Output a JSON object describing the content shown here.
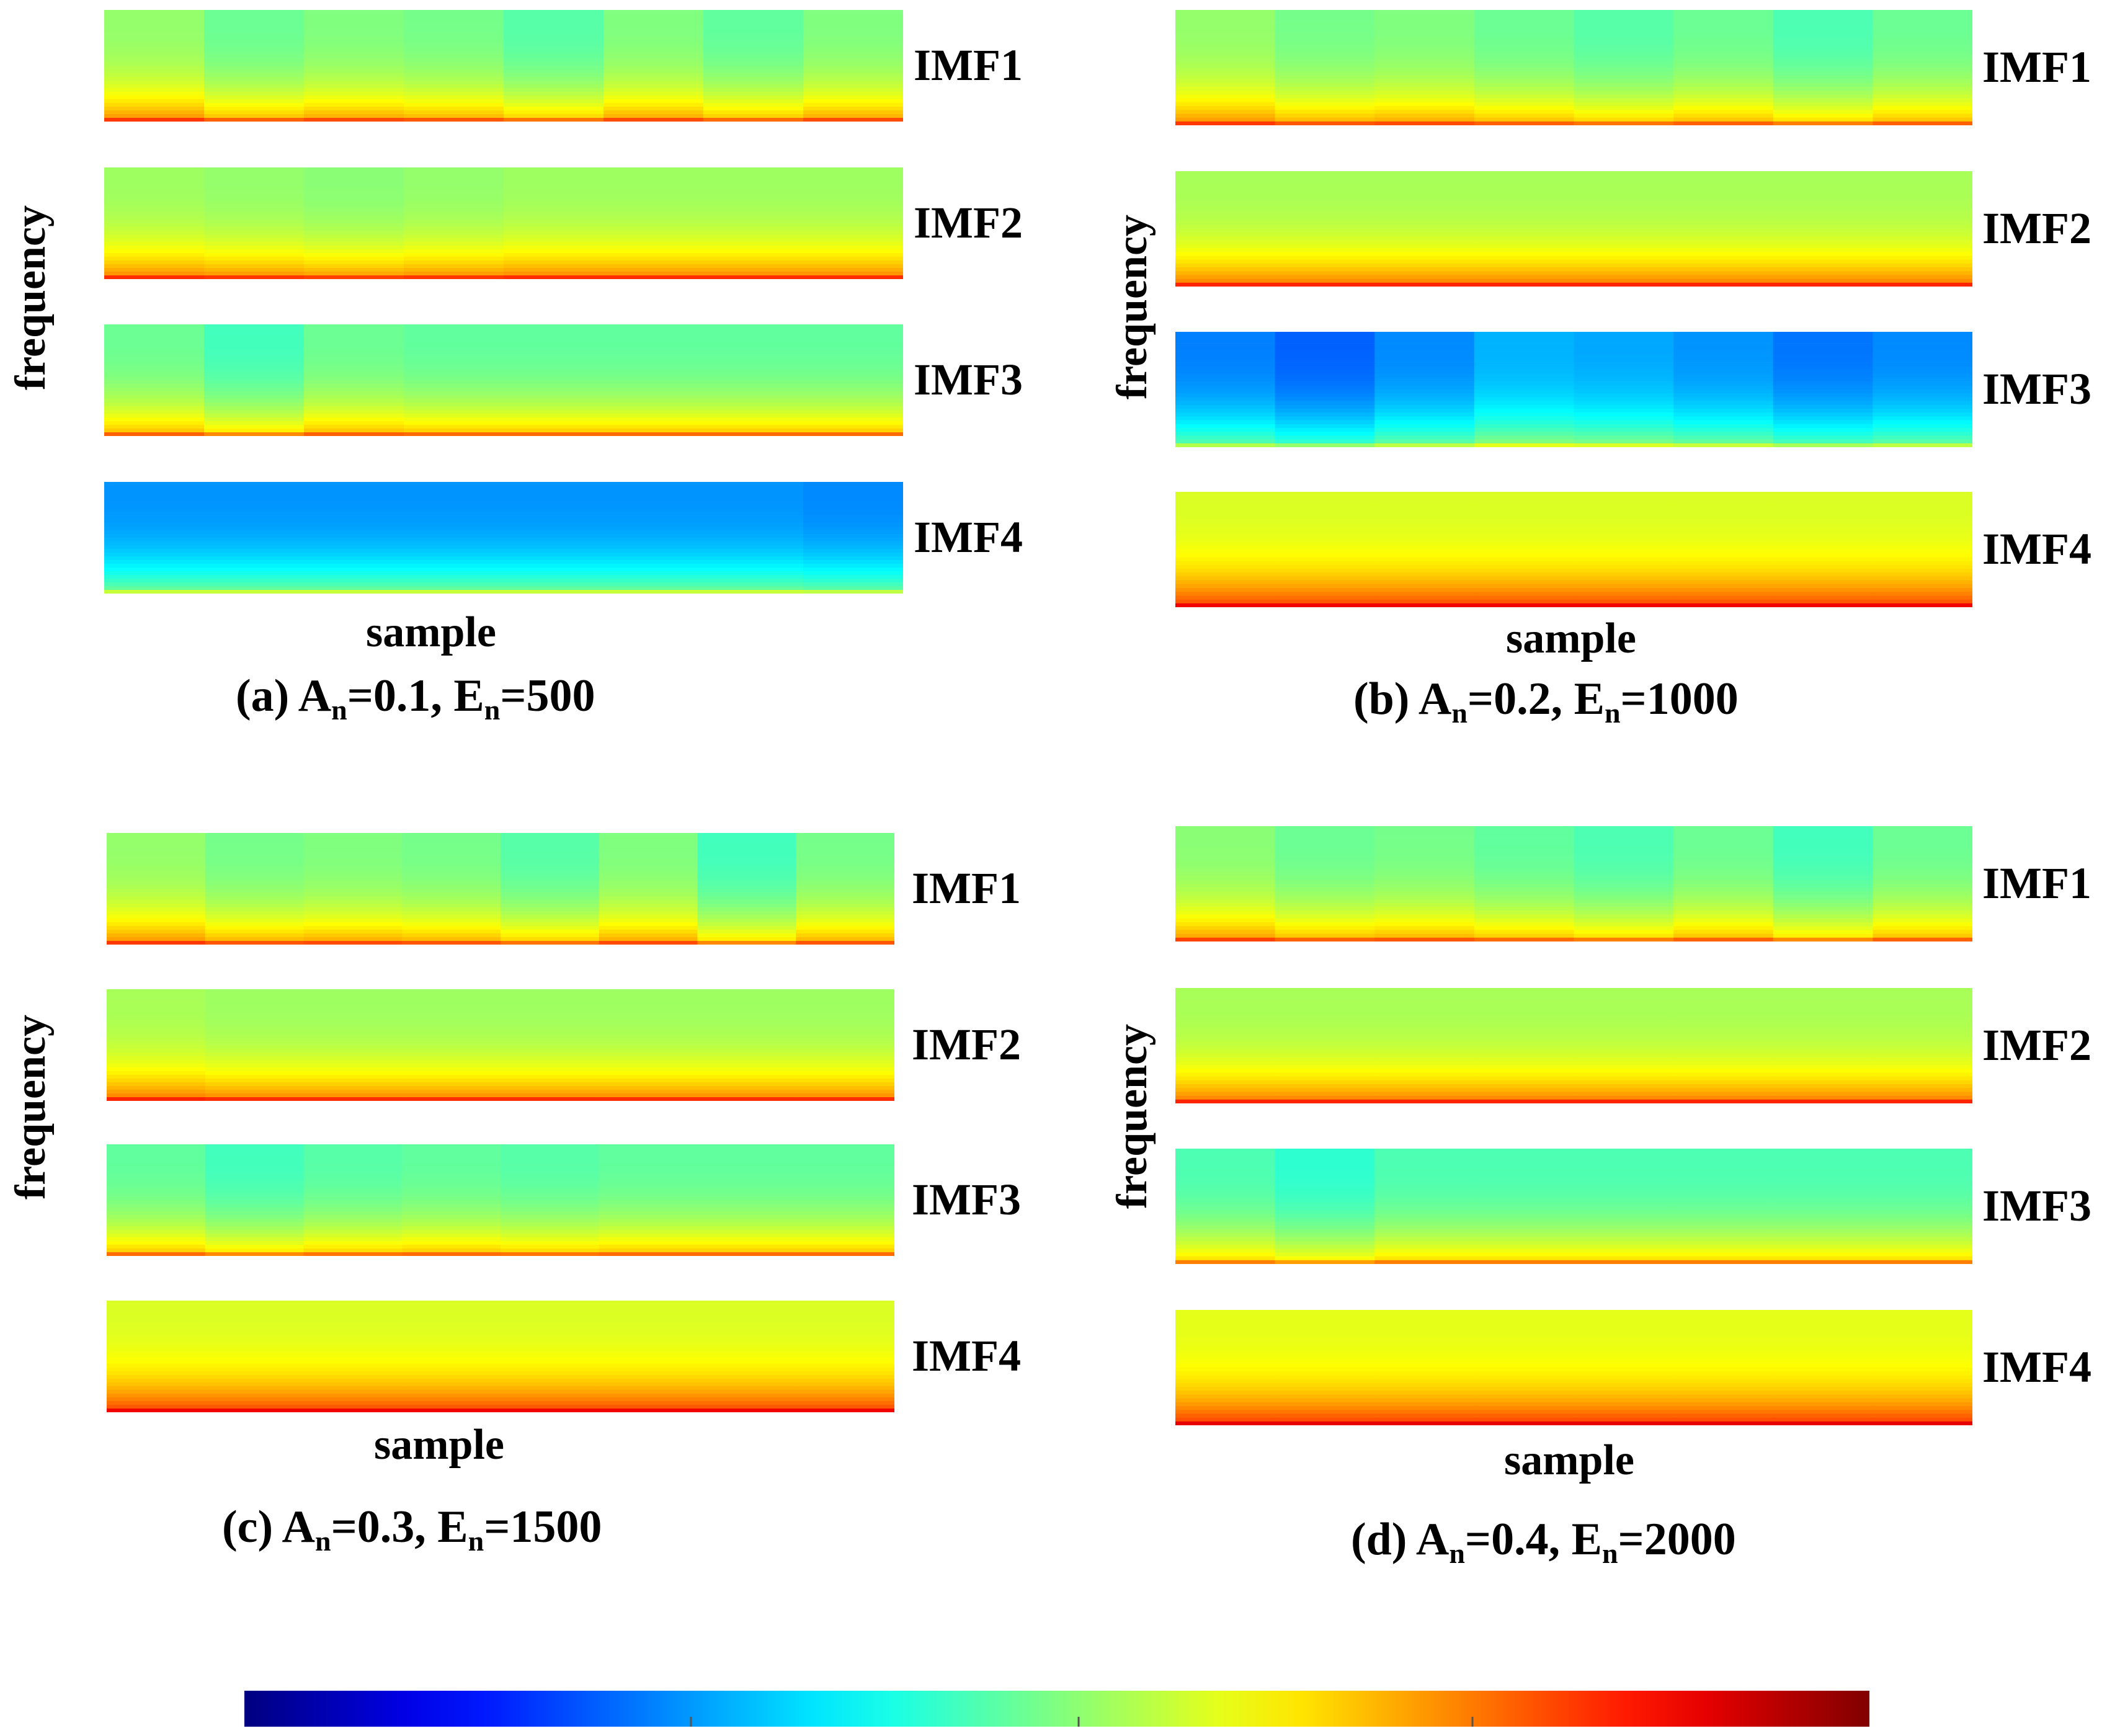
{
  "chart_data": {
    "type": "heatmap",
    "colormap": "jet",
    "colormap_stops": [
      "#00008f",
      "#0000ff",
      "#0080ff",
      "#00ffff",
      "#80ff80",
      "#ffff00",
      "#ff8000",
      "#ff0000",
      "#800000"
    ],
    "column_count": 8,
    "panels": [
      {
        "id": "a",
        "caption_prefix": "(a) A",
        "caption_sub_a": "n",
        "caption_mid": "=0.1, E",
        "caption_sub_e": "n",
        "caption_suffix": "=500",
        "xlabel": "sample",
        "ylabel": "frequency",
        "imfs": [
          {
            "label": "IMF1",
            "base": [
              0.52,
              0.48,
              0.5,
              0.49,
              0.46,
              0.5,
              0.47,
              0.5
            ]
          },
          {
            "label": "IMF2",
            "base": [
              0.53,
              0.52,
              0.51,
              0.52,
              0.53,
              0.53,
              0.53,
              0.53
            ]
          },
          {
            "label": "IMF3",
            "base": [
              0.48,
              0.44,
              0.48,
              0.47,
              0.47,
              0.47,
              0.47,
              0.47
            ]
          },
          {
            "label": "IMF4",
            "base": [
              0.27,
              0.27,
              0.27,
              0.27,
              0.27,
              0.27,
              0.27,
              0.26
            ]
          }
        ]
      },
      {
        "id": "b",
        "caption_prefix": "(b) A",
        "caption_sub_a": "n",
        "caption_mid": "=0.2, E",
        "caption_sub_e": "n",
        "caption_suffix": "=1000",
        "xlabel": "sample",
        "ylabel": "frequency",
        "imfs": [
          {
            "label": "IMF1",
            "base": [
              0.52,
              0.49,
              0.5,
              0.48,
              0.46,
              0.48,
              0.45,
              0.48
            ]
          },
          {
            "label": "IMF2",
            "base": [
              0.54,
              0.54,
              0.54,
              0.54,
              0.54,
              0.54,
              0.54,
              0.54
            ]
          },
          {
            "label": "IMF3",
            "base": [
              0.25,
              0.22,
              0.26,
              0.3,
              0.29,
              0.27,
              0.24,
              0.26
            ]
          },
          {
            "label": "IMF4",
            "base": [
              0.59,
              0.59,
              0.59,
              0.59,
              0.59,
              0.59,
              0.59,
              0.59
            ]
          }
        ]
      },
      {
        "id": "c",
        "caption_prefix": "(c) A",
        "caption_sub_a": "n",
        "caption_mid": "=0.3, E",
        "caption_sub_e": "n",
        "caption_suffix": "=1500",
        "xlabel": "sample",
        "ylabel": "frequency",
        "imfs": [
          {
            "label": "IMF1",
            "base": [
              0.52,
              0.49,
              0.5,
              0.49,
              0.46,
              0.5,
              0.44,
              0.49
            ]
          },
          {
            "label": "IMF2",
            "base": [
              0.54,
              0.53,
              0.53,
              0.53,
              0.53,
              0.53,
              0.53,
              0.53
            ]
          },
          {
            "label": "IMF3",
            "base": [
              0.47,
              0.44,
              0.46,
              0.47,
              0.46,
              0.47,
              0.47,
              0.47
            ]
          },
          {
            "label": "IMF4",
            "base": [
              0.59,
              0.59,
              0.59,
              0.59,
              0.59,
              0.59,
              0.59,
              0.59
            ]
          }
        ]
      },
      {
        "id": "d",
        "caption_prefix": "(d) A",
        "caption_sub_a": "n",
        "caption_mid": "=0.4, E",
        "caption_sub_e": "n",
        "caption_suffix": "=2000",
        "xlabel": "sample",
        "ylabel": "frequency",
        "imfs": [
          {
            "label": "IMF1",
            "base": [
              0.51,
              0.48,
              0.49,
              0.47,
              0.45,
              0.48,
              0.44,
              0.48
            ]
          },
          {
            "label": "IMF2",
            "base": [
              0.54,
              0.54,
              0.54,
              0.54,
              0.54,
              0.54,
              0.54,
              0.54
            ]
          },
          {
            "label": "IMF3",
            "base": [
              0.45,
              0.42,
              0.45,
              0.45,
              0.45,
              0.45,
              0.45,
              0.45
            ]
          },
          {
            "label": "IMF4",
            "base": [
              0.6,
              0.6,
              0.6,
              0.6,
              0.6,
              0.6,
              0.6,
              0.6
            ]
          }
        ]
      }
    ]
  }
}
